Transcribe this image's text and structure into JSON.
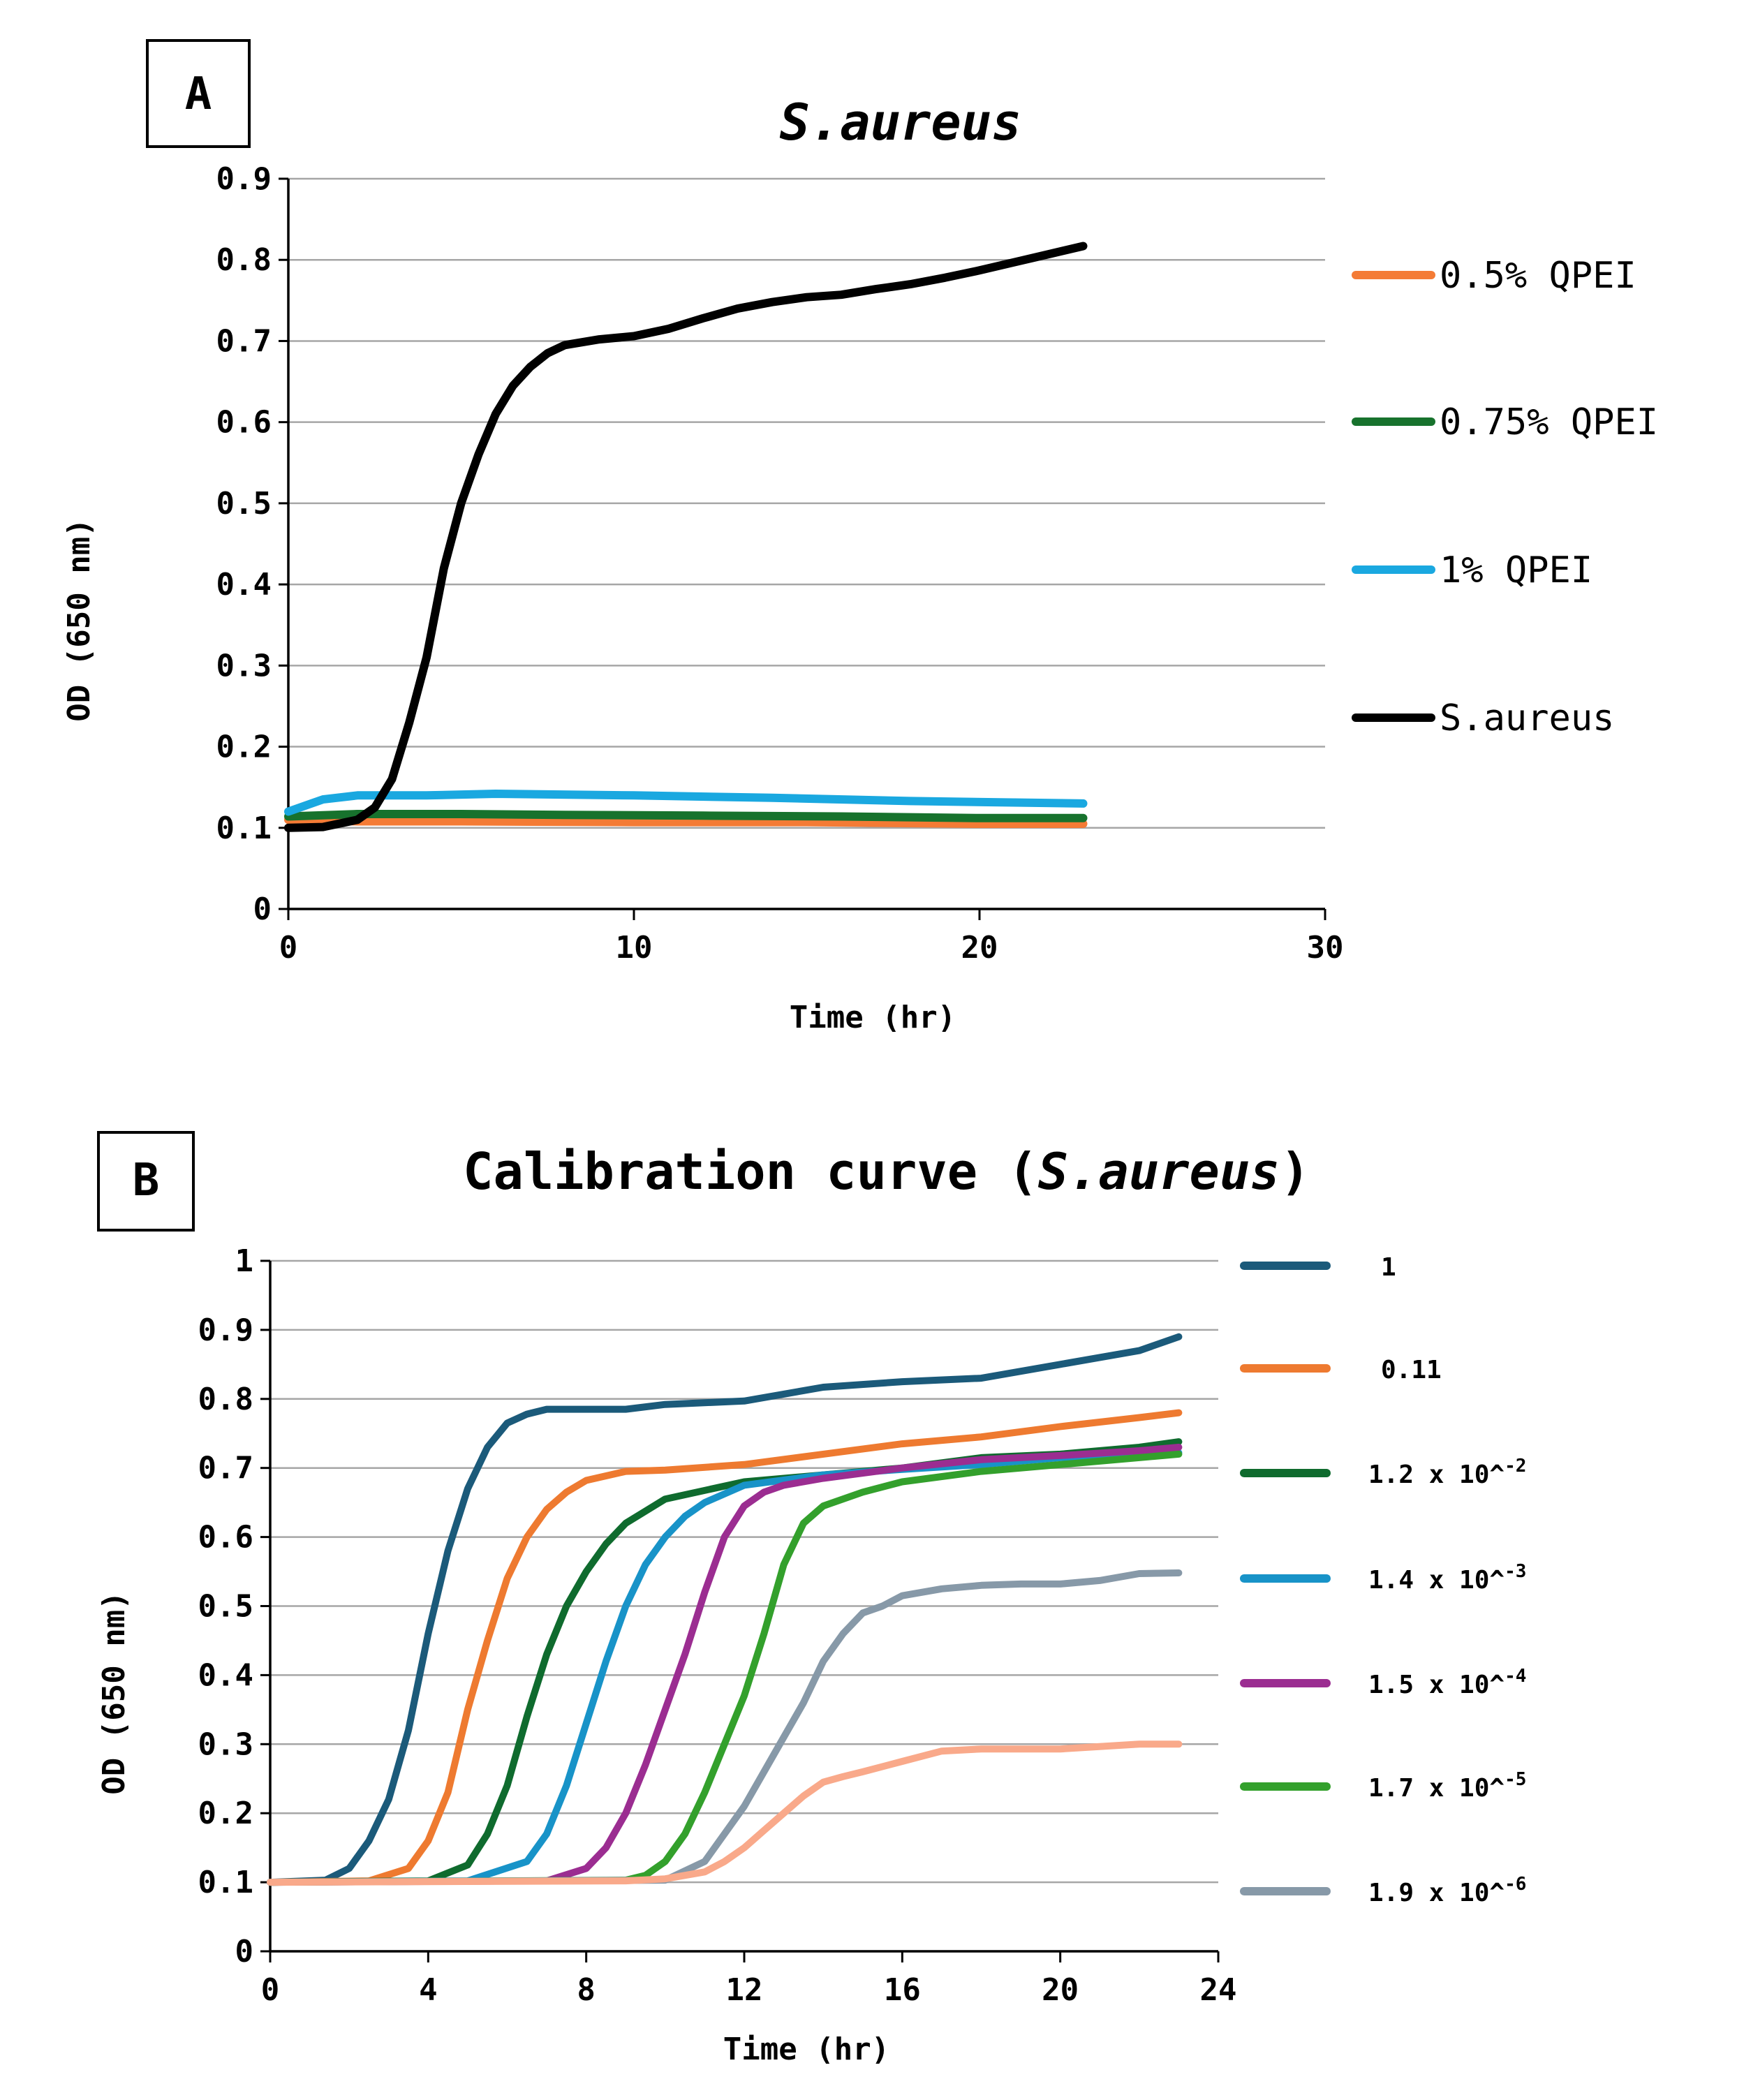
{
  "chart_data": [
    {
      "panel": "A",
      "type": "line",
      "title": "S.aureus",
      "xlabel": "Time (hr)",
      "ylabel": "OD (650 nm)",
      "xlim": [
        0,
        30
      ],
      "ylim": [
        0,
        0.9
      ],
      "xticks": [
        "0",
        "10",
        "20",
        "30"
      ],
      "yticks": [
        "0",
        "0.1",
        "0.2",
        "0.3",
        "0.4",
        "0.5",
        "0.6",
        "0.7",
        "0.8",
        "0.9"
      ],
      "grid": true,
      "legend_position": "right",
      "series": [
        {
          "name": "0.5% QPEI",
          "color": "#F47B35",
          "x": [
            0,
            2,
            5,
            10,
            15,
            20,
            23
          ],
          "y": [
            0.11,
            0.108,
            0.108,
            0.107,
            0.107,
            0.105,
            0.105
          ]
        },
        {
          "name": "0.75% QPEI",
          "color": "#17722D",
          "x": [
            0,
            2,
            5,
            8,
            12,
            16,
            20,
            23
          ],
          "y": [
            0.114,
            0.117,
            0.117,
            0.116,
            0.115,
            0.114,
            0.112,
            0.112
          ]
        },
        {
          "name": "1% QPEI",
          "color": "#1AA8E0",
          "x": [
            0,
            1,
            2,
            4,
            6,
            10,
            14,
            18,
            23
          ],
          "y": [
            0.12,
            0.135,
            0.14,
            0.14,
            0.142,
            0.14,
            0.137,
            0.133,
            0.13
          ]
        },
        {
          "name": "S.aureus",
          "color": "#000000",
          "x": [
            0,
            1,
            2,
            2.5,
            3,
            3.5,
            4,
            4.5,
            5,
            5.5,
            6,
            6.5,
            7,
            7.5,
            8,
            9,
            10,
            11,
            12,
            13,
            14,
            15,
            16,
            17,
            18,
            19,
            20,
            21,
            22,
            23
          ],
          "y": [
            0.1,
            0.101,
            0.11,
            0.125,
            0.16,
            0.23,
            0.31,
            0.42,
            0.5,
            0.56,
            0.61,
            0.645,
            0.668,
            0.685,
            0.695,
            0.702,
            0.706,
            0.715,
            0.728,
            0.74,
            0.748,
            0.754,
            0.757,
            0.764,
            0.77,
            0.778,
            0.787,
            0.797,
            0.807,
            0.817
          ]
        }
      ]
    },
    {
      "panel": "B",
      "type": "line",
      "title": "Calibration curve (",
      "title_italic": "S.aureus",
      "title_suffix": ")",
      "xlabel": "Time (hr)",
      "ylabel": "OD (650 nm)",
      "xlim": [
        0,
        24
      ],
      "ylim": [
        0,
        1
      ],
      "xticks": [
        "0",
        "4",
        "8",
        "12",
        "16",
        "20",
        "24"
      ],
      "yticks": [
        "0",
        "0.1",
        "0.2",
        "0.3",
        "0.4",
        "0.5",
        "0.6",
        "0.7",
        "0.8",
        "0.9",
        "1"
      ],
      "grid": true,
      "legend_position": "right",
      "series": [
        {
          "name": "1",
          "color": "#1B5A7A",
          "x": [
            0,
            1.4,
            2,
            2.5,
            3,
            3.5,
            4,
            4.5,
            5,
            5.5,
            6,
            6.5,
            7,
            8,
            9,
            10,
            12,
            14,
            16,
            18,
            20,
            22,
            23
          ],
          "y": [
            0.1,
            0.103,
            0.12,
            0.16,
            0.22,
            0.32,
            0.46,
            0.58,
            0.67,
            0.73,
            0.765,
            0.778,
            0.785,
            0.785,
            0.785,
            0.792,
            0.797,
            0.817,
            0.825,
            0.83,
            0.85,
            0.87,
            0.89
          ]
        },
        {
          "name": "0.11",
          "color": "#EE7A30",
          "x": [
            0,
            2.5,
            3.5,
            4,
            4.5,
            5,
            5.5,
            6,
            6.5,
            7,
            7.5,
            8,
            9,
            10,
            12,
            14,
            16,
            18,
            20,
            22,
            23
          ],
          "y": [
            0.1,
            0.102,
            0.12,
            0.16,
            0.23,
            0.35,
            0.45,
            0.54,
            0.6,
            0.64,
            0.665,
            0.682,
            0.695,
            0.697,
            0.705,
            0.72,
            0.735,
            0.745,
            0.76,
            0.773,
            0.78
          ]
        },
        {
          "name": "1.2 x 10^-2",
          "color": "#0F6B2E",
          "x": [
            0,
            4,
            5,
            5.5,
            6,
            6.5,
            7,
            7.5,
            8,
            8.5,
            9,
            10,
            12,
            14,
            16,
            18,
            20,
            22,
            23
          ],
          "y": [
            0.1,
            0.102,
            0.125,
            0.17,
            0.24,
            0.34,
            0.43,
            0.5,
            0.55,
            0.59,
            0.62,
            0.655,
            0.68,
            0.69,
            0.7,
            0.715,
            0.72,
            0.73,
            0.738
          ]
        },
        {
          "name": "1.4 x 10^-3",
          "color": "#1893C8",
          "x": [
            0,
            5,
            6.5,
            7,
            7.5,
            8,
            8.5,
            9,
            9.5,
            10,
            10.5,
            11,
            12,
            14,
            16,
            18,
            20,
            22,
            23
          ],
          "y": [
            0.1,
            0.102,
            0.13,
            0.17,
            0.24,
            0.33,
            0.42,
            0.5,
            0.56,
            0.6,
            0.63,
            0.65,
            0.675,
            0.69,
            0.698,
            0.705,
            0.715,
            0.72,
            0.722
          ]
        },
        {
          "name": "1.5 x 10^-4",
          "color": "#9B2D91",
          "x": [
            0,
            7,
            8,
            8.5,
            9,
            9.5,
            10,
            10.5,
            11,
            11.5,
            12,
            12.5,
            13,
            14,
            16,
            18,
            20,
            22,
            23
          ],
          "y": [
            0.1,
            0.102,
            0.12,
            0.15,
            0.2,
            0.27,
            0.35,
            0.43,
            0.52,
            0.6,
            0.645,
            0.665,
            0.675,
            0.685,
            0.7,
            0.712,
            0.718,
            0.725,
            0.73
          ]
        },
        {
          "name": "1.7 x 10^-5",
          "color": "#33A02C",
          "x": [
            0,
            9,
            9.5,
            10,
            10.5,
            11,
            11.5,
            12,
            12.5,
            13,
            13.5,
            14,
            15,
            16,
            18,
            20,
            22,
            23
          ],
          "y": [
            0.1,
            0.103,
            0.11,
            0.13,
            0.17,
            0.23,
            0.3,
            0.37,
            0.46,
            0.56,
            0.62,
            0.645,
            0.665,
            0.68,
            0.695,
            0.705,
            0.715,
            0.72
          ]
        },
        {
          "name": "1.9 x 10^-6",
          "color": "#8799A8",
          "x": [
            0,
            10,
            11,
            11.5,
            12,
            12.5,
            13,
            13.5,
            14,
            14.5,
            15,
            15.5,
            16,
            17,
            18,
            19,
            20,
            21,
            22,
            23
          ],
          "y": [
            0.1,
            0.103,
            0.13,
            0.17,
            0.21,
            0.26,
            0.31,
            0.36,
            0.42,
            0.46,
            0.49,
            0.5,
            0.515,
            0.525,
            0.53,
            0.532,
            0.532,
            0.537,
            0.547,
            0.548
          ]
        },
        {
          "name": "",
          "color": "#F9A98A",
          "x": [
            0,
            9,
            10,
            11,
            11.5,
            12,
            12.5,
            13,
            13.5,
            14,
            14.5,
            15,
            16,
            17,
            18,
            20,
            22,
            23
          ],
          "y": [
            0.1,
            0.102,
            0.105,
            0.115,
            0.13,
            0.15,
            0.175,
            0.2,
            0.225,
            0.245,
            0.253,
            0.26,
            0.275,
            0.29,
            0.293,
            0.293,
            0.3,
            0.3
          ]
        }
      ],
      "legend": [
        {
          "label": "1",
          "base": "1",
          "exp": "",
          "color": "#1B5A7A"
        },
        {
          "label": "0.11",
          "base": "0.11",
          "exp": "",
          "color": "#EE7A30"
        },
        {
          "label": "1.2 x 10^-2",
          "base": "1.2 x 10^",
          "exp": "-2",
          "color": "#0F6B2E"
        },
        {
          "label": "1.4 x 10^-3",
          "base": "1.4 x 10^",
          "exp": "-3",
          "color": "#1893C8"
        },
        {
          "label": "1.5 x 10^-4",
          "base": "1.5 x 10^",
          "exp": "-4",
          "color": "#9B2D91"
        },
        {
          "label": "1.7 x 10^-5",
          "base": "1.7 x 10^",
          "exp": "-5",
          "color": "#33A02C"
        },
        {
          "label": "1.9 x 10^-6",
          "base": "1.9 x 10^",
          "exp": "-6",
          "color": "#8799A8"
        }
      ]
    }
  ]
}
